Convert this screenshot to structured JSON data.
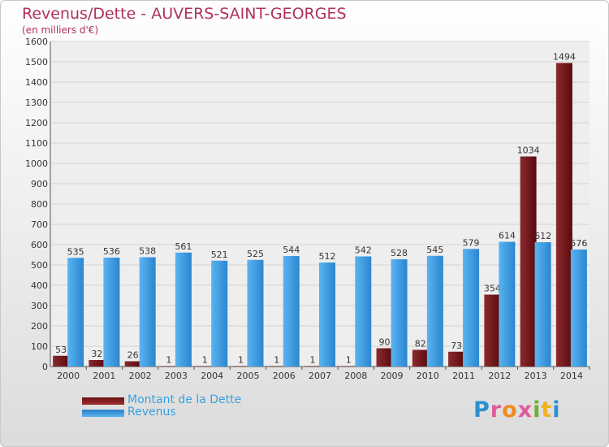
{
  "chart_data": {
    "type": "bar",
    "title": "Revenus/Dette - AUVERS-SAINT-GEORGES",
    "subtitle": "(en milliers d'€)",
    "categories": [
      "2000",
      "2001",
      "2002",
      "2003",
      "2004",
      "2005",
      "2006",
      "2007",
      "2008",
      "2009",
      "2010",
      "2011",
      "2012",
      "2013",
      "2014"
    ],
    "series": [
      {
        "name": "Montant de la Dette",
        "color": "#6a0f12",
        "values": [
          53,
          32,
          26,
          1,
          1,
          1,
          1,
          1,
          1,
          90,
          82,
          73,
          354,
          1034,
          1494
        ]
      },
      {
        "name": "Revenus",
        "color": "#3a9ee0",
        "values": [
          535,
          536,
          538,
          561,
          521,
          525,
          544,
          512,
          542,
          528,
          545,
          579,
          614,
          612,
          576
        ]
      }
    ],
    "ylim": [
      0,
      1600
    ],
    "yticks": [
      0,
      100,
      200,
      300,
      400,
      500,
      600,
      700,
      800,
      900,
      1000,
      1100,
      1200,
      1300,
      1400,
      1500,
      1600
    ],
    "grid": true,
    "legend_position": "bottom-left"
  },
  "logo": {
    "text": "Proxiti"
  }
}
